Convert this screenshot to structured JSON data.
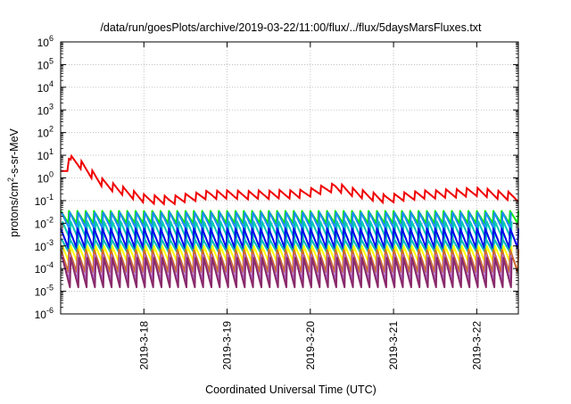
{
  "chart_data": {
    "type": "line",
    "title": "/data/run/goesPlots/archive/2019-03-22/11:00/flux/../flux/5daysMarsFluxes.txt",
    "xlabel": "Coordinated Universal Time (UTC)",
    "ylabel_parts": [
      "protons/cm",
      "2",
      "-s-sr-MeV"
    ],
    "x_range_days": [
      "2019-3-17 00:00",
      "2019-3-22 12:00"
    ],
    "x_ticks": [
      "2019-3-18",
      "2019-3-19",
      "2019-3-20",
      "2019-3-21",
      "2019-3-22"
    ],
    "y_scale": "log",
    "ylim": [
      1e-06,
      1000000.0
    ],
    "y_ticks": [
      {
        "base": "10",
        "exp": "-6"
      },
      {
        "base": "10",
        "exp": "-5"
      },
      {
        "base": "10",
        "exp": "-4"
      },
      {
        "base": "10",
        "exp": "-3"
      },
      {
        "base": "10",
        "exp": "-2"
      },
      {
        "base": "10",
        "exp": "-1"
      },
      {
        "base": "10",
        "exp": "0"
      },
      {
        "base": "10",
        "exp": "1"
      },
      {
        "base": "10",
        "exp": "2"
      },
      {
        "base": "10",
        "exp": "3"
      },
      {
        "base": "10",
        "exp": "4"
      },
      {
        "base": "10",
        "exp": "5"
      },
      {
        "base": "10",
        "exp": "6"
      }
    ],
    "grid": true,
    "series_shape": {
      "red_knots": [
        [
          0.0,
          2
        ],
        [
          0.08,
          2
        ],
        [
          0.1,
          7
        ],
        [
          0.25,
          3.5
        ],
        [
          0.5,
          0.6
        ],
        [
          0.7,
          0.3
        ],
        [
          1.0,
          0.12
        ],
        [
          1.3,
          0.1
        ],
        [
          1.8,
          0.18
        ],
        [
          2.3,
          0.18
        ],
        [
          2.9,
          0.2
        ],
        [
          3.3,
          0.4
        ],
        [
          3.6,
          0.2
        ],
        [
          3.9,
          0.12
        ],
        [
          4.3,
          0.18
        ],
        [
          4.8,
          0.22
        ],
        [
          5.0,
          0.25
        ],
        [
          5.5,
          0.14
        ]
      ],
      "red_sawtooth_period_days": 0.125,
      "red_sawtooth_amplitude_factor": 2.5,
      "band_period_days": 0.1
    },
    "series": [
      {
        "color": "#f00000",
        "values_desc": "red trace"
      },
      {
        "color": "#00ee00",
        "lo": 0.01,
        "hi": 0.035
      },
      {
        "color": "#1e88ff",
        "lo": 0.006,
        "hi": 0.03
      },
      {
        "color": "#00c8b4",
        "lo": 0.002,
        "hi": 0.012
      },
      {
        "color": "#0000ee",
        "lo": 0.0008,
        "hi": 0.006
      },
      {
        "color": "#00b8b8",
        "lo": 0.0005,
        "hi": 0.002
      },
      {
        "color": "#ffff00",
        "lo": 0.00015,
        "hi": 0.001
      },
      {
        "color": "#cc6a2a",
        "lo": 7e-05,
        "hi": 0.0007
      },
      {
        "color": "#b06ad0",
        "lo": 3e-05,
        "hi": 0.0004
      },
      {
        "color": "#8a2a6a",
        "lo": 1.5e-05,
        "hi": 0.0003
      }
    ]
  }
}
